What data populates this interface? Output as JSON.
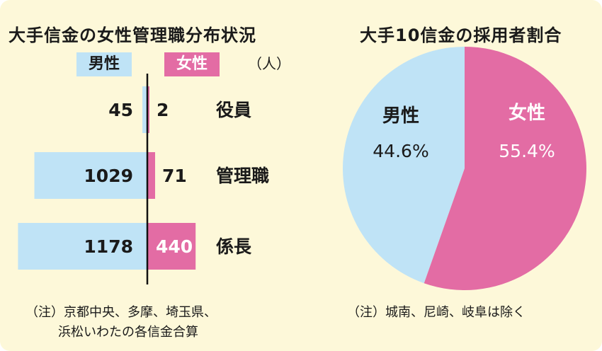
{
  "left_title": "大手信金の女性管理職分布状況",
  "right_title": "大手10信金の採用者割合",
  "legend": {
    "male": "男性",
    "female": "女性"
  },
  "unit": "（人）",
  "colors": {
    "male": "#bfe3f6",
    "female": "#e36ca4",
    "background": "#fdf8d9",
    "axis": "#111111"
  },
  "notes": {
    "left": [
      "（注）京都中央、多摩、埼玉県、",
      "浜松いわたの各信金合算"
    ],
    "right": "（注）城南、尼崎、岐阜は除く"
  },
  "chart_data": [
    {
      "type": "bar",
      "orientation": "horizontal-diverging",
      "categories": [
        "役員",
        "管理職",
        "係長"
      ],
      "series": [
        {
          "name": "男性",
          "values": [
            45,
            1029,
            1178
          ]
        },
        {
          "name": "女性",
          "values": [
            2,
            71,
            440
          ]
        }
      ],
      "unit": "人"
    },
    {
      "type": "pie",
      "labels": [
        "男性",
        "女性"
      ],
      "values": [
        44.6,
        55.4
      ],
      "value_labels": [
        "44.6%",
        "55.4%"
      ]
    }
  ]
}
